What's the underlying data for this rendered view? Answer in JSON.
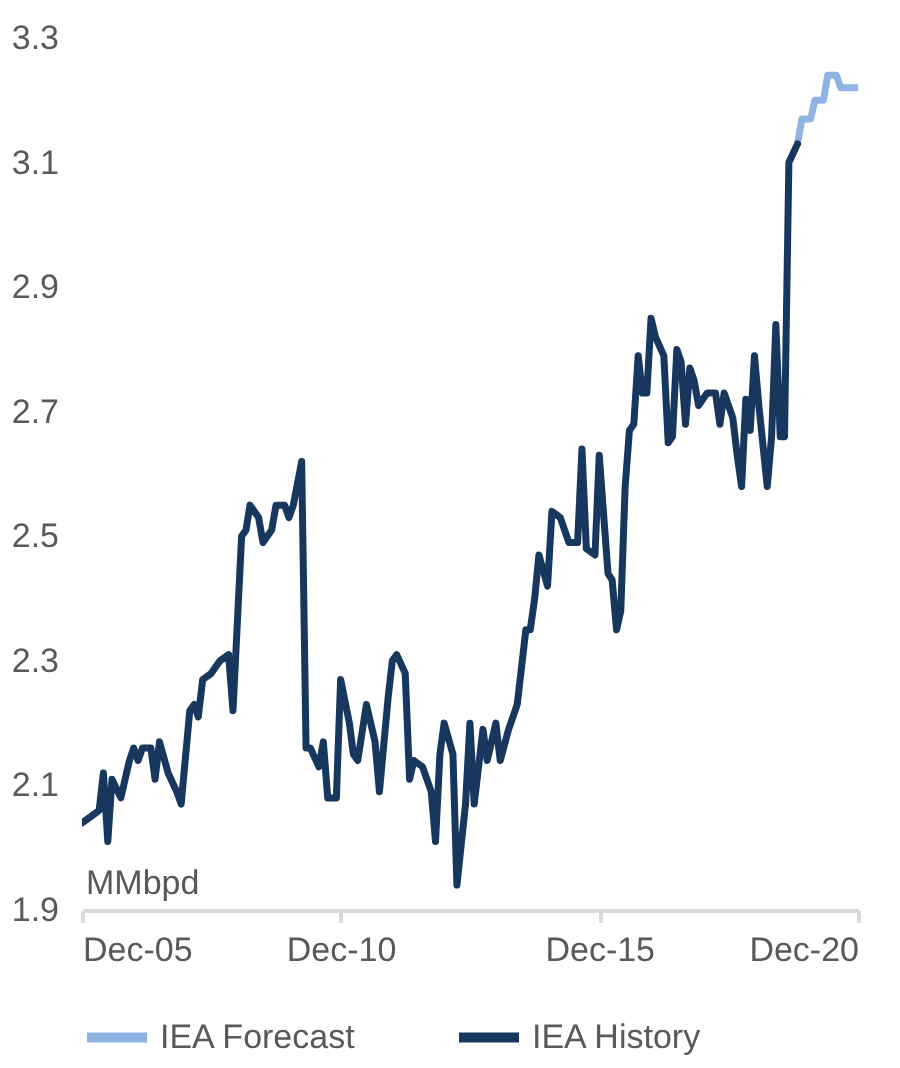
{
  "chart_data": {
    "type": "line",
    "ylabel": "MMbpd",
    "xlim": [
      "2005-12",
      "2020-12"
    ],
    "xticks": [
      {
        "value": "2005-12",
        "label": "Dec-05"
      },
      {
        "value": "2010-12",
        "label": "Dec-10"
      },
      {
        "value": "2015-12",
        "label": "Dec-15"
      },
      {
        "value": "2020-12",
        "label": "Dec-20"
      }
    ],
    "ylim": [
      1.9,
      3.3
    ],
    "yticks": [
      1.9,
      2.1,
      2.3,
      2.5,
      2.7,
      2.9,
      3.1,
      3.3
    ],
    "grid": false,
    "legend": "bottom",
    "marker": "none",
    "line_style": "solid",
    "series": [
      {
        "name": "IEA Forecast",
        "color": "#8db4e2",
        "x": [
          "2019-10",
          "2019-11",
          "2020-01",
          "2020-02",
          "2020-04",
          "2020-05",
          "2020-07",
          "2020-08",
          "2020-12"
        ],
        "values": [
          3.13,
          3.17,
          3.17,
          3.2,
          3.2,
          3.24,
          3.24,
          3.22,
          3.22
        ]
      },
      {
        "name": "IEA History",
        "color": "#17375e",
        "x": [
          "2005-12",
          "2006-02",
          "2006-04",
          "2006-05",
          "2006-06",
          "2006-07",
          "2006-09",
          "2006-11",
          "2006-12",
          "2007-01",
          "2007-02",
          "2007-04",
          "2007-05",
          "2007-06",
          "2007-08",
          "2007-10",
          "2007-11",
          "2008-01",
          "2008-02",
          "2008-03",
          "2008-04",
          "2008-06",
          "2008-07",
          "2008-08",
          "2008-10",
          "2008-11",
          "2009-01",
          "2009-02",
          "2009-03",
          "2009-05",
          "2009-06",
          "2009-08",
          "2009-09",
          "2009-11",
          "2009-12",
          "2010-01",
          "2010-03",
          "2010-04",
          "2010-05",
          "2010-07",
          "2010-08",
          "2010-09",
          "2010-11",
          "2010-12",
          "2011-02",
          "2011-03",
          "2011-04",
          "2011-06",
          "2011-08",
          "2011-09",
          "2011-11",
          "2011-12",
          "2012-01",
          "2012-03",
          "2012-04",
          "2012-05",
          "2012-07",
          "2012-09",
          "2012-10",
          "2012-11",
          "2012-12",
          "2013-02",
          "2013-03",
          "2013-05",
          "2013-06",
          "2013-07",
          "2013-09",
          "2013-10",
          "2013-12",
          "2014-01",
          "2014-03",
          "2014-04",
          "2014-05",
          "2014-07",
          "2014-08",
          "2014-09",
          "2014-10",
          "2014-12",
          "2015-01",
          "2015-03",
          "2015-05",
          "2015-07",
          "2015-08",
          "2015-09",
          "2015-11",
          "2015-12",
          "2016-02",
          "2016-03",
          "2016-04",
          "2016-05",
          "2016-06",
          "2016-07",
          "2016-08",
          "2016-09",
          "2016-10",
          "2016-11",
          "2016-12",
          "2017-01",
          "2017-03",
          "2017-04",
          "2017-05",
          "2017-06",
          "2017-07",
          "2017-08",
          "2017-09",
          "2017-10",
          "2017-11",
          "2018-01",
          "2018-03",
          "2018-04",
          "2018-05",
          "2018-07",
          "2018-08",
          "2018-09",
          "2018-10",
          "2018-11",
          "2018-12",
          "2019-01",
          "2019-03",
          "2019-04",
          "2019-05",
          "2019-06",
          "2019-07",
          "2019-08",
          "2019-10"
        ],
        "values": [
          2.04,
          2.05,
          2.06,
          2.12,
          2.01,
          2.11,
          2.08,
          2.14,
          2.16,
          2.14,
          2.16,
          2.16,
          2.11,
          2.17,
          2.12,
          2.09,
          2.07,
          2.22,
          2.23,
          2.21,
          2.27,
          2.28,
          2.29,
          2.3,
          2.31,
          2.22,
          2.5,
          2.51,
          2.55,
          2.53,
          2.49,
          2.51,
          2.55,
          2.55,
          2.53,
          2.55,
          2.62,
          2.16,
          2.16,
          2.13,
          2.17,
          2.08,
          2.08,
          2.27,
          2.2,
          2.15,
          2.14,
          2.23,
          2.17,
          2.09,
          2.24,
          2.3,
          2.31,
          2.28,
          2.11,
          2.14,
          2.13,
          2.09,
          2.01,
          2.15,
          2.2,
          2.15,
          1.94,
          2.07,
          2.2,
          2.07,
          2.19,
          2.14,
          2.2,
          2.14,
          2.19,
          2.21,
          2.23,
          2.35,
          2.35,
          2.4,
          2.47,
          2.42,
          2.54,
          2.53,
          2.49,
          2.49,
          2.64,
          2.48,
          2.47,
          2.63,
          2.44,
          2.43,
          2.35,
          2.38,
          2.58,
          2.67,
          2.68,
          2.79,
          2.73,
          2.73,
          2.85,
          2.82,
          2.79,
          2.65,
          2.66,
          2.8,
          2.78,
          2.68,
          2.77,
          2.75,
          2.71,
          2.73,
          2.73,
          2.68,
          2.73,
          2.69,
          2.63,
          2.58,
          2.72,
          2.67,
          2.79,
          2.71,
          2.58,
          2.66,
          2.84,
          2.66,
          2.66,
          3.1,
          3.13
        ]
      }
    ]
  }
}
